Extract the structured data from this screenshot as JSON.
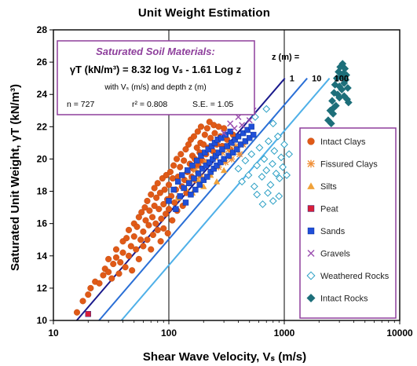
{
  "chart_data": {
    "type": "scatter",
    "title": "Unit Weight Estimation",
    "xlabel": "Shear Wave Velocity, Vₛ (m/s)",
    "ylabel": "Saturated Unit Weight, γT (kN/m³)",
    "x_scale": "log",
    "xlim": [
      10,
      10000
    ],
    "ylim": [
      10,
      28
    ],
    "x_ticks": [
      "10",
      "100",
      "1000",
      "10000"
    ],
    "y_ticks": [
      "10",
      "12",
      "14",
      "16",
      "18",
      "20",
      "22",
      "24",
      "26",
      "28"
    ],
    "grid": "vertical gridlines at decades",
    "legend_position": "right",
    "annotation": {
      "heading": "Saturated Soil Materials:",
      "equation": "γT (kN/m³) = 8.32 log Vₛ - 1.61 Log z",
      "subtitle": "with Vₛ (m/s) and depth z (m)",
      "n": "n = 727",
      "r2": "r² = 0.808",
      "se": "S.E. = 1.05"
    },
    "depth_label": "z (m) =",
    "depth_lines": [
      {
        "label": "1",
        "z": 1,
        "color": "#1a1a8c"
      },
      {
        "label": "10",
        "z": 10,
        "color": "#2a6fd6"
      },
      {
        "label": "100",
        "z": 100,
        "color": "#4fb0e8"
      }
    ],
    "colors": {
      "axes": "#000000",
      "grid": "#000000",
      "annotation_border": "#8e3f9c",
      "annotation_heading": "#8e3f9c",
      "legend_border": "#8e3f9c"
    },
    "series": [
      {
        "name": "Intact Clays",
        "marker": "circle",
        "color": "#e05a17",
        "points": [
          [
            16,
            10.5
          ],
          [
            18,
            11.2
          ],
          [
            20,
            11.6
          ],
          [
            21,
            12.0
          ],
          [
            23,
            12.4
          ],
          [
            25,
            12.3
          ],
          [
            27,
            12.8
          ],
          [
            28,
            13.2
          ],
          [
            30,
            13.0
          ],
          [
            30,
            13.8
          ],
          [
            32,
            12.6
          ],
          [
            33,
            13.5
          ],
          [
            35,
            13.9
          ],
          [
            35,
            14.4
          ],
          [
            37,
            12.9
          ],
          [
            38,
            13.6
          ],
          [
            40,
            14.2
          ],
          [
            40,
            14.9
          ],
          [
            42,
            13.3
          ],
          [
            43,
            15.1
          ],
          [
            45,
            14.0
          ],
          [
            45,
            15.6
          ],
          [
            47,
            14.6
          ],
          [
            48,
            13.1
          ],
          [
            50,
            15.2
          ],
          [
            50,
            16.0
          ],
          [
            52,
            14.4
          ],
          [
            53,
            15.8
          ],
          [
            55,
            13.8
          ],
          [
            55,
            16.4
          ],
          [
            57,
            15.0
          ],
          [
            58,
            16.7
          ],
          [
            60,
            14.6
          ],
          [
            60,
            15.5
          ],
          [
            62,
            17.0
          ],
          [
            63,
            16.2
          ],
          [
            65,
            15.0
          ],
          [
            65,
            17.4
          ],
          [
            67,
            15.9
          ],
          [
            68,
            16.8
          ],
          [
            70,
            14.4
          ],
          [
            70,
            17.8
          ],
          [
            72,
            16.4
          ],
          [
            73,
            15.3
          ],
          [
            75,
            17.1
          ],
          [
            75,
            18.2
          ],
          [
            77,
            16.0
          ],
          [
            78,
            17.6
          ],
          [
            80,
            15.6
          ],
          [
            80,
            18.5
          ],
          [
            82,
            16.9
          ],
          [
            84,
            17.9
          ],
          [
            85,
            14.9
          ],
          [
            86,
            16.3
          ],
          [
            88,
            18.8
          ],
          [
            90,
            17.2
          ],
          [
            90,
            15.7
          ],
          [
            92,
            18.1
          ],
          [
            94,
            16.6
          ],
          [
            95,
            19.0
          ],
          [
            97,
            17.5
          ],
          [
            98,
            15.4
          ],
          [
            100,
            18.4
          ],
          [
            100,
            16.9
          ],
          [
            103,
            19.2
          ],
          [
            105,
            17.7
          ],
          [
            107,
            16.2
          ],
          [
            108,
            18.8
          ],
          [
            110,
            19.6
          ],
          [
            112,
            17.3
          ],
          [
            115,
            18.1
          ],
          [
            117,
            20.0
          ],
          [
            118,
            16.8
          ],
          [
            120,
            18.9
          ],
          [
            122,
            17.6
          ],
          [
            125,
            19.5
          ],
          [
            127,
            20.3
          ],
          [
            130,
            18.3
          ],
          [
            132,
            17.1
          ],
          [
            135,
            19.9
          ],
          [
            137,
            18.7
          ],
          [
            140,
            20.6
          ],
          [
            142,
            17.9
          ],
          [
            145,
            19.2
          ],
          [
            148,
            20.9
          ],
          [
            150,
            18.5
          ],
          [
            152,
            19.7
          ],
          [
            155,
            21.2
          ],
          [
            158,
            18.9
          ],
          [
            160,
            20.2
          ],
          [
            163,
            19.4
          ],
          [
            165,
            21.4
          ],
          [
            168,
            20.0
          ],
          [
            170,
            18.7
          ],
          [
            175,
            20.7
          ],
          [
            178,
            21.7
          ],
          [
            180,
            19.6
          ],
          [
            185,
            20.4
          ],
          [
            188,
            21.0
          ],
          [
            190,
            22.0
          ],
          [
            195,
            19.9
          ],
          [
            200,
            20.9
          ],
          [
            205,
            21.5
          ],
          [
            210,
            20.3
          ],
          [
            215,
            21.9
          ],
          [
            220,
            20.7
          ],
          [
            225,
            22.3
          ],
          [
            230,
            21.3
          ],
          [
            240,
            20.5
          ],
          [
            245,
            22.1
          ],
          [
            250,
            21.6
          ],
          [
            260,
            20.9
          ],
          [
            270,
            22.0
          ],
          [
            280,
            21.4
          ],
          [
            290,
            20.8
          ],
          [
            300,
            21.9
          ],
          [
            320,
            21.2
          ],
          [
            340,
            20.6
          ],
          [
            360,
            21.5
          ]
        ]
      },
      {
        "name": "Fissured Clays",
        "marker": "asterisk",
        "color": "#f0913a",
        "points": [
          [
            150,
            18.6
          ],
          [
            170,
            19.3
          ],
          [
            190,
            18.9
          ],
          [
            210,
            19.8
          ],
          [
            230,
            19.2
          ],
          [
            250,
            20.1
          ],
          [
            270,
            19.5
          ],
          [
            290,
            20.4
          ],
          [
            310,
            19.8
          ],
          [
            330,
            20.6
          ],
          [
            350,
            20.0
          ],
          [
            380,
            20.8
          ],
          [
            410,
            20.3
          ],
          [
            440,
            20.9
          ]
        ]
      },
      {
        "name": "Silts",
        "marker": "triangle",
        "color": "#f0a23a",
        "points": [
          [
            120,
            17.6
          ],
          [
            140,
            18.2
          ],
          [
            160,
            17.9
          ],
          [
            180,
            18.7
          ],
          [
            200,
            18.3
          ],
          [
            230,
            19.0
          ],
          [
            260,
            18.6
          ],
          [
            300,
            19.3
          ]
        ]
      },
      {
        "name": "Peat",
        "marker": "square",
        "color": "#d81e3a",
        "points": [
          [
            20,
            10.4
          ]
        ]
      },
      {
        "name": "Sands",
        "marker": "square",
        "color": "#1f4fd8",
        "points": [
          [
            100,
            17.4
          ],
          [
            110,
            18.1
          ],
          [
            115,
            16.9
          ],
          [
            120,
            18.6
          ],
          [
            125,
            17.7
          ],
          [
            130,
            19.0
          ],
          [
            135,
            18.2
          ],
          [
            140,
            17.3
          ],
          [
            145,
            19.3
          ],
          [
            150,
            18.5
          ],
          [
            155,
            17.8
          ],
          [
            160,
            19.6
          ],
          [
            165,
            18.8
          ],
          [
            170,
            18.1
          ],
          [
            175,
            19.9
          ],
          [
            180,
            19.1
          ],
          [
            185,
            18.4
          ],
          [
            190,
            20.2
          ],
          [
            195,
            19.4
          ],
          [
            200,
            18.7
          ],
          [
            205,
            20.4
          ],
          [
            210,
            19.6
          ],
          [
            215,
            18.9
          ],
          [
            220,
            20.6
          ],
          [
            225,
            19.8
          ],
          [
            230,
            19.2
          ],
          [
            235,
            20.8
          ],
          [
            240,
            20.0
          ],
          [
            245,
            19.4
          ],
          [
            250,
            21.0
          ],
          [
            255,
            20.2
          ],
          [
            260,
            19.6
          ],
          [
            265,
            21.2
          ],
          [
            270,
            20.4
          ],
          [
            280,
            19.8
          ],
          [
            285,
            21.3
          ],
          [
            290,
            20.6
          ],
          [
            300,
            20.0
          ],
          [
            310,
            21.5
          ],
          [
            320,
            20.8
          ],
          [
            330,
            20.2
          ],
          [
            340,
            21.7
          ],
          [
            350,
            21.0
          ],
          [
            360,
            20.4
          ],
          [
            375,
            21.2
          ],
          [
            390,
            20.6
          ],
          [
            400,
            21.4
          ],
          [
            420,
            20.9
          ],
          [
            440,
            21.6
          ],
          [
            460,
            21.1
          ],
          [
            480,
            21.8
          ],
          [
            500,
            21.3
          ],
          [
            520,
            22.0
          ],
          [
            540,
            21.5
          ]
        ]
      },
      {
        "name": "Gravels",
        "marker": "x",
        "color": "#9b4fb0",
        "points": [
          [
            300,
            21.6
          ],
          [
            340,
            22.2
          ],
          [
            370,
            21.9
          ],
          [
            400,
            22.6
          ],
          [
            430,
            22.1
          ],
          [
            460,
            22.9
          ],
          [
            500,
            22.4
          ],
          [
            540,
            23.0
          ]
        ]
      },
      {
        "name": "Weathered Rocks",
        "marker": "diamond-open",
        "color": "#2a9fc4",
        "points": [
          [
            400,
            19.4
          ],
          [
            430,
            18.6
          ],
          [
            460,
            19.9
          ],
          [
            490,
            19.0
          ],
          [
            520,
            20.3
          ],
          [
            550,
            18.3
          ],
          [
            580,
            19.6
          ],
          [
            610,
            20.7
          ],
          [
            640,
            18.9
          ],
          [
            670,
            20.0
          ],
          [
            700,
            19.3
          ],
          [
            730,
            21.1
          ],
          [
            760,
            18.4
          ],
          [
            790,
            19.7
          ],
          [
            820,
            20.5
          ],
          [
            850,
            19.1
          ],
          [
            880,
            21.4
          ],
          [
            910,
            18.8
          ],
          [
            940,
            20.1
          ],
          [
            970,
            19.5
          ],
          [
            1000,
            20.9
          ],
          [
            1050,
            19.0
          ],
          [
            1100,
            20.3
          ],
          [
            580,
            17.8
          ],
          [
            650,
            17.2
          ],
          [
            720,
            17.9
          ],
          [
            800,
            17.4
          ],
          [
            900,
            17.7
          ],
          [
            560,
            22.6
          ],
          [
            700,
            23.1
          ],
          [
            800,
            22.2
          ]
        ]
      },
      {
        "name": "Intact Rocks",
        "marker": "diamond-filled",
        "color": "#1d6f7a",
        "points": [
          [
            2400,
            22.4
          ],
          [
            2500,
            23.0
          ],
          [
            2600,
            23.6
          ],
          [
            2650,
            22.8
          ],
          [
            2700,
            24.1
          ],
          [
            2750,
            24.6
          ],
          [
            2800,
            23.3
          ],
          [
            2850,
            25.0
          ],
          [
            2900,
            24.0
          ],
          [
            2950,
            25.4
          ],
          [
            3000,
            24.5
          ],
          [
            3050,
            25.7
          ],
          [
            3100,
            25.1
          ],
          [
            3150,
            24.3
          ],
          [
            3200,
            25.9
          ],
          [
            3250,
            25.3
          ],
          [
            3300,
            24.7
          ],
          [
            3350,
            25.6
          ],
          [
            3400,
            24.9
          ],
          [
            3450,
            25.2
          ],
          [
            3500,
            23.7
          ],
          [
            3550,
            24.4
          ],
          [
            3600,
            23.5
          ],
          [
            2550,
            22.2
          ],
          [
            2700,
            23.2
          ],
          [
            3000,
            23.8
          ],
          [
            3300,
            23.9
          ]
        ]
      }
    ]
  }
}
